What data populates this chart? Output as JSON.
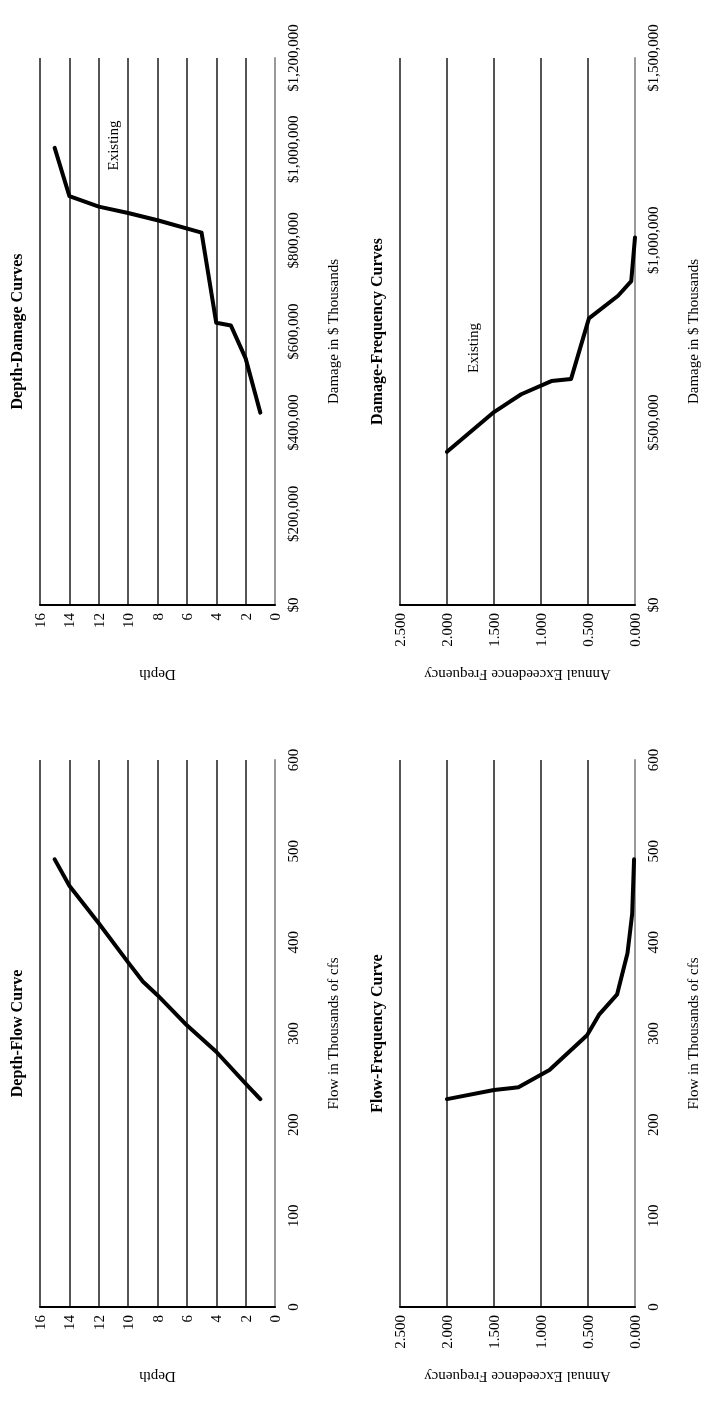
{
  "chart_data": [
    {
      "type": "line",
      "title": "Depth-Damage Curves",
      "xlabel": "Depth",
      "ylabel": "Damage in $ Thousands",
      "x": [
        1,
        2,
        3,
        4,
        5,
        8,
        10,
        12,
        14,
        15
      ],
      "values": [
        422000,
        541000,
        613000,
        619000,
        817000,
        844000,
        860000,
        874000,
        897000,
        1003000
      ],
      "color": "#000000",
      "xlim": [
        16,
        0
      ],
      "xticks": [
        16,
        14,
        12,
        10,
        8,
        6,
        4,
        2,
        0
      ],
      "ylim": [
        0,
        1200000
      ],
      "yticks": [
        {
          "value": 0,
          "label": "$0"
        },
        {
          "value": 200000,
          "label": "$200,000"
        },
        {
          "value": 400000,
          "label": "$400,000"
        },
        {
          "value": 600000,
          "label": "$600,000"
        },
        {
          "value": 800000,
          "label": "$800,000"
        },
        {
          "value": 1000000,
          "label": "$1,000,000"
        },
        {
          "value": 1200000,
          "label": "$1,200,000"
        }
      ],
      "grid": "x",
      "annotations": [
        "Existing"
      ]
    },
    {
      "type": "line",
      "title": "Damage-Frequency Curves",
      "xlabel": "Annual Exceedence Frequency",
      "ylabel": "Damage in $ Thousands",
      "x": [
        2.0,
        1.5,
        1.21,
        0.89,
        0.68,
        0.49,
        0.18,
        0.04,
        0.0
      ],
      "values": [
        420000,
        529000,
        578000,
        614000,
        620000,
        786000,
        848000,
        888000,
        1008000
      ],
      "color": "#000000",
      "xlim": [
        2.5,
        0
      ],
      "xticks": [
        {
          "value": 2.5,
          "label": "2.500"
        },
        {
          "value": 2,
          "label": "2.000"
        },
        {
          "value": 1.5,
          "label": "1.500"
        },
        {
          "value": 1,
          "label": "1.000"
        },
        {
          "value": 0.5,
          "label": "0.500"
        },
        {
          "value": 0,
          "label": "0.000"
        }
      ],
      "ylim": [
        0,
        1500000
      ],
      "yticks": [
        {
          "value": 0,
          "label": "$0"
        },
        {
          "value": 500000,
          "label": "$500,000"
        },
        {
          "value": 1000000,
          "label": "$1,000,000"
        },
        {
          "value": 1500000,
          "label": "$1,500,000"
        }
      ],
      "grid": "x",
      "annotations": [
        "Existing"
      ]
    },
    {
      "type": "line",
      "title": "Depth-Flow Curve",
      "xlabel": "Depth",
      "ylabel": "Flow in Thousands of cfs",
      "x": [
        1,
        2,
        4,
        6,
        8,
        9,
        10,
        12,
        14,
        15
      ],
      "values": [
        228,
        245,
        280,
        309,
        342,
        357,
        378,
        421,
        462,
        491
      ],
      "color": "#000000",
      "xlim": [
        16,
        0
      ],
      "xticks": [
        16,
        14,
        12,
        10,
        8,
        6,
        4,
        2,
        0
      ],
      "ylim": [
        0,
        600
      ],
      "yticks": [
        0,
        100,
        200,
        300,
        400,
        500,
        600
      ],
      "grid": "x"
    },
    {
      "type": "line",
      "title": "Flow-Frequency Curve",
      "xlabel": "Annual Exceedence Frequency",
      "ylabel": "Flow in Thousands of cfs",
      "x": [
        2.0,
        1.5,
        1.24,
        0.91,
        0.7,
        0.51,
        0.38,
        0.19,
        0.08,
        0.03,
        0.01
      ],
      "values": [
        228,
        238,
        241,
        260,
        280,
        298,
        321,
        343,
        388,
        431,
        491
      ],
      "color": "#000000",
      "xlim": [
        2.5,
        0
      ],
      "xticks": [
        {
          "value": 2.5,
          "label": "2.500"
        },
        {
          "value": 2,
          "label": "2.000"
        },
        {
          "value": 1.5,
          "label": "1.500"
        },
        {
          "value": 1,
          "label": "1.000"
        },
        {
          "value": 0.5,
          "label": "0.500"
        },
        {
          "value": 0,
          "label": "0.000"
        }
      ],
      "ylim": [
        0,
        600
      ],
      "yticks": [
        0,
        100,
        200,
        300,
        400,
        500,
        600
      ],
      "grid": "x"
    }
  ]
}
